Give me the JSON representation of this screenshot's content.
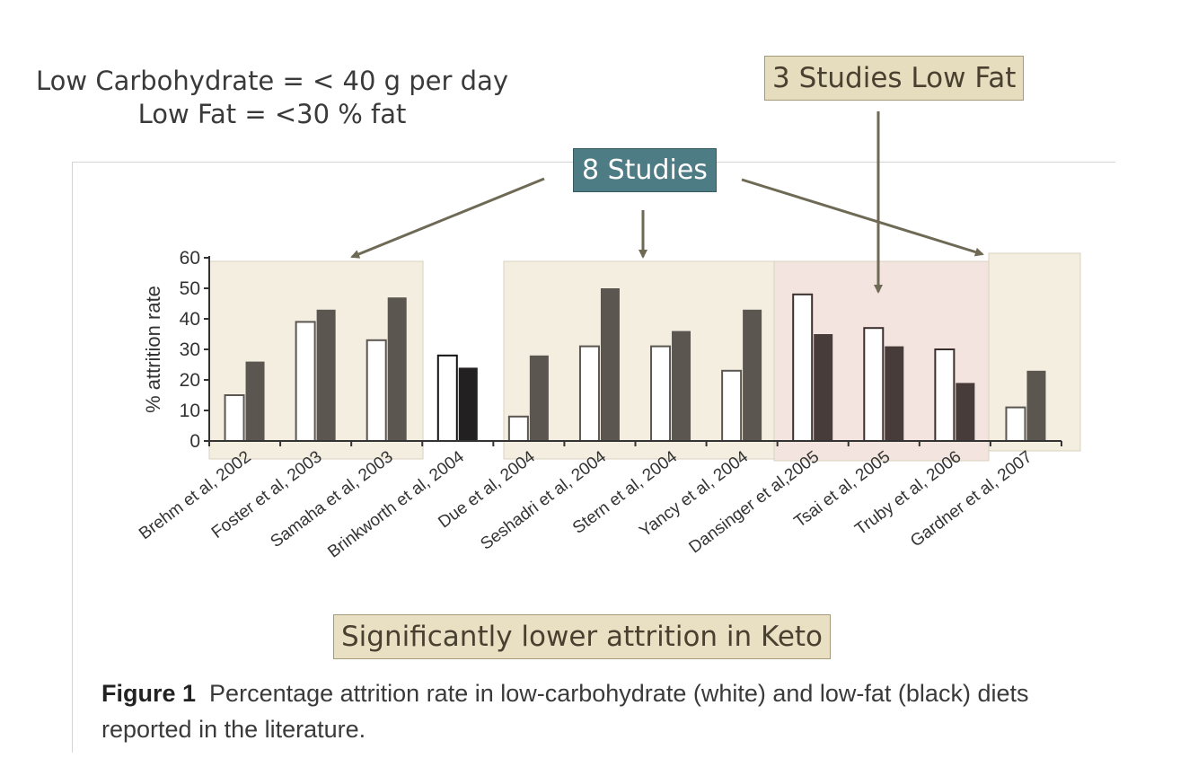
{
  "definitions": {
    "line1": "Low Carbohydrate = < 40 g per day",
    "line2": "Low Fat = <30 % fat"
  },
  "callouts": {
    "low_fat": "3 Studies Low Fat",
    "studies": "8 Studies",
    "keto": "Significantly lower attrition in Keto"
  },
  "caption": {
    "bold": "Figure 1",
    "text": "Percentage attrition rate in low-carbohydrate (white) and low-fat (black) diets reported in the literature."
  },
  "colors": {
    "group_highlight": "#f3eee0",
    "lowfat_highlight": "#f4e4df",
    "bar_dark": "#5b5650",
    "bar_darkest": "#222021",
    "bar_lowfat_group": "#473c3a",
    "arrow": "#6e6a55"
  },
  "chart_data": {
    "type": "bar",
    "ylabel": "% attrition rate",
    "ylim": [
      0,
      60
    ],
    "yticks": [
      0,
      10,
      20,
      30,
      40,
      50,
      60
    ],
    "categories": [
      "Brehm et al, 2002",
      "Foster et al, 2003",
      "Samaha et al, 2003",
      "Brinkworth et al, 2004",
      "Due et al, 2004",
      "Seshadri et al, 2004",
      "Stern et al, 2004",
      "Yancy et al, 2004",
      "Dansinger et al,2005",
      "Tsai et al, 2005",
      "Truby et al, 2006",
      "Gardner et al, 2007"
    ],
    "series": [
      {
        "name": "low-carbohydrate (white)",
        "values": [
          15,
          39,
          33,
          28,
          8,
          31,
          31,
          23,
          48,
          37,
          30,
          11
        ]
      },
      {
        "name": "low-fat (black)",
        "values": [
          26,
          43,
          47,
          24,
          28,
          50,
          36,
          43,
          35,
          31,
          19,
          23
        ]
      }
    ],
    "legend": "none"
  }
}
